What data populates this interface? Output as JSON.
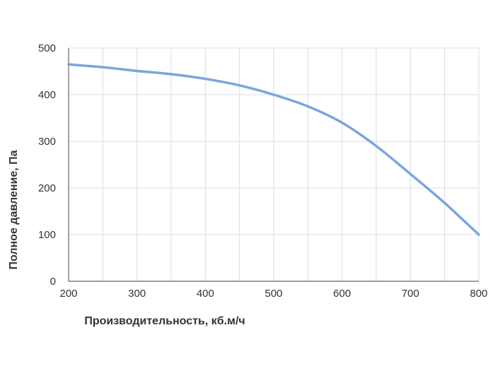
{
  "chart_data": {
    "type": "line",
    "title": "",
    "xlabel": "Производительность, кб.м/ч",
    "ylabel": "Полное давление, Па",
    "xlim": [
      200,
      800
    ],
    "ylim": [
      0,
      500
    ],
    "x_ticks": [
      200,
      300,
      400,
      500,
      600,
      700,
      800
    ],
    "y_ticks": [
      0,
      100,
      200,
      300,
      400,
      500
    ],
    "x_minor_step": 50,
    "grid": true,
    "colors": {
      "line": "#7aa5dc",
      "grid": "#d8dde3",
      "axis": "#666666",
      "text": "#333333"
    },
    "series": [
      {
        "x": [
          200,
          250,
          300,
          350,
          400,
          450,
          500,
          550,
          600,
          650,
          700,
          750,
          800
        ],
        "y": [
          465,
          459,
          451,
          444,
          434,
          420,
          400,
          375,
          340,
          290,
          230,
          168,
          100
        ]
      }
    ]
  }
}
